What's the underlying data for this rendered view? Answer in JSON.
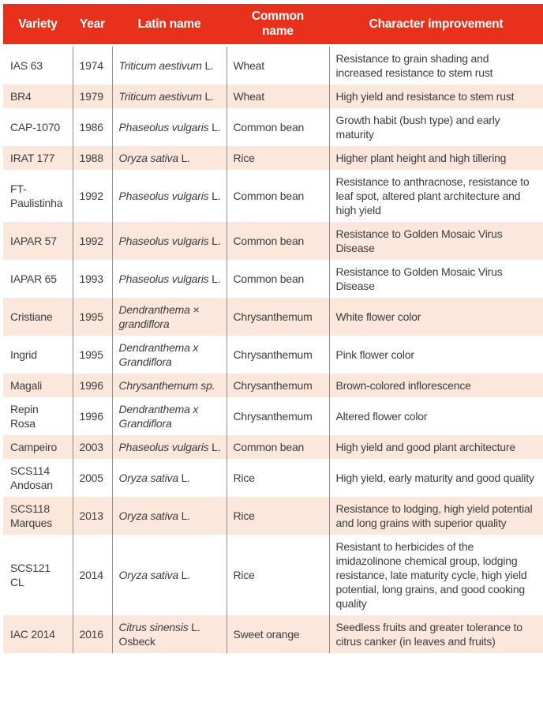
{
  "colors": {
    "header_bg": "#E8311C",
    "row_alt_bg": "#FBE7DC",
    "divider": "#8E8E8E",
    "text": "#3D3D3D",
    "header_text": "#FFFFFF"
  },
  "table": {
    "headers": [
      "Variety",
      "Year",
      "Latin name",
      "Common\nname",
      "Character improvement"
    ],
    "rows": [
      {
        "variety": "IAS 63",
        "year": "1974",
        "latin_italic": "Triticum aestivum",
        "latin_regular": " L.",
        "common": "Wheat",
        "improvement": "Resistance to grain shading and increased resistance to stem rust"
      },
      {
        "variety": "BR4",
        "year": "1979",
        "latin_italic": "Triticum aestivum",
        "latin_regular": " L.",
        "common": "Wheat",
        "improvement": "High yield and resistance to stem rust"
      },
      {
        "variety": "CAP-1070",
        "year": "1986",
        "latin_italic": "Phaseolus vulgaris",
        "latin_regular": " L.",
        "common": "Common bean",
        "improvement": "Growth habit (bush type) and early maturity"
      },
      {
        "variety": "IRAT 177",
        "year": "1988",
        "latin_italic": "Oryza sativa",
        "latin_regular": " L.",
        "common": "Rice",
        "improvement": "Higher plant height and high tillering"
      },
      {
        "variety": "FT-Paulistinha",
        "year": "1992",
        "latin_italic": "Phaseolus vulgaris",
        "latin_regular": " L.",
        "common": "Common bean",
        "improvement": "Resistance to anthracnose, resistance to leaf spot, altered plant architecture and high yield"
      },
      {
        "variety": "IAPAR 57",
        "year": "1992",
        "latin_italic": "Phaseolus vulgaris",
        "latin_regular": " L.",
        "common": "Common bean",
        "improvement": "Resistance to Golden Mosaic Virus Disease"
      },
      {
        "variety": "IAPAR 65",
        "year": "1993",
        "latin_italic": "Phaseolus vulgaris",
        "latin_regular": " L.",
        "common": "Common bean",
        "improvement": "Resistance to Golden Mosaic Virus Disease"
      },
      {
        "variety": "Cristiane",
        "year": "1995",
        "latin_italic": "Dendranthema × grandiflora",
        "latin_regular": "",
        "common": "Chrysanthemum",
        "improvement": "White flower color"
      },
      {
        "variety": "Ingrid",
        "year": "1995",
        "latin_italic": "Dendranthema x Grandiflora",
        "latin_regular": "",
        "common": "Chrysanthemum",
        "improvement": "Pink flower color"
      },
      {
        "variety": "Magali",
        "year": "1996",
        "latin_italic": "Chrysanthemum sp.",
        "latin_regular": "",
        "common": "Chrysanthemum",
        "improvement": "Brown-colored inflorescence"
      },
      {
        "variety": "Repin Rosa",
        "year": "1996",
        "latin_italic": "Dendranthema x Grandiflora",
        "latin_regular": "",
        "common": "Chrysanthemum",
        "improvement": "Altered flower color"
      },
      {
        "variety": "Campeiro",
        "year": "2003",
        "latin_italic": "Phaseolus vulgaris",
        "latin_regular": " L.",
        "common": "Common bean",
        "improvement": "High yield and good plant architecture"
      },
      {
        "variety": "SCS114 Andosan",
        "year": "2005",
        "latin_italic": "Oryza sativa",
        "latin_regular": " L.",
        "common": "Rice",
        "improvement": "High yield, early maturity and good quality"
      },
      {
        "variety": "SCS118 Marques",
        "year": "2013",
        "latin_italic": "Oryza sativa",
        "latin_regular": " L.",
        "common": "Rice",
        "improvement": "Resistance to lodging, high yield potential and long grains with superior quality"
      },
      {
        "variety": "SCS121 CL",
        "year": "2014",
        "latin_italic": "Oryza sativa",
        "latin_regular": " L.",
        "common": "Rice",
        "improvement": "Resistant to herbicides of the imidazolinone chemical group, lodging resistance, late maturity cycle, high yield potential, long grains, and good cooking quality"
      },
      {
        "variety": "IAC 2014",
        "year": "2016",
        "latin_italic": "Citrus sinensis",
        "latin_regular": " L. Osbeck",
        "common": "Sweet orange",
        "improvement": "Seedless fruits and greater tolerance to citrus canker (in leaves and fruits)"
      }
    ]
  }
}
